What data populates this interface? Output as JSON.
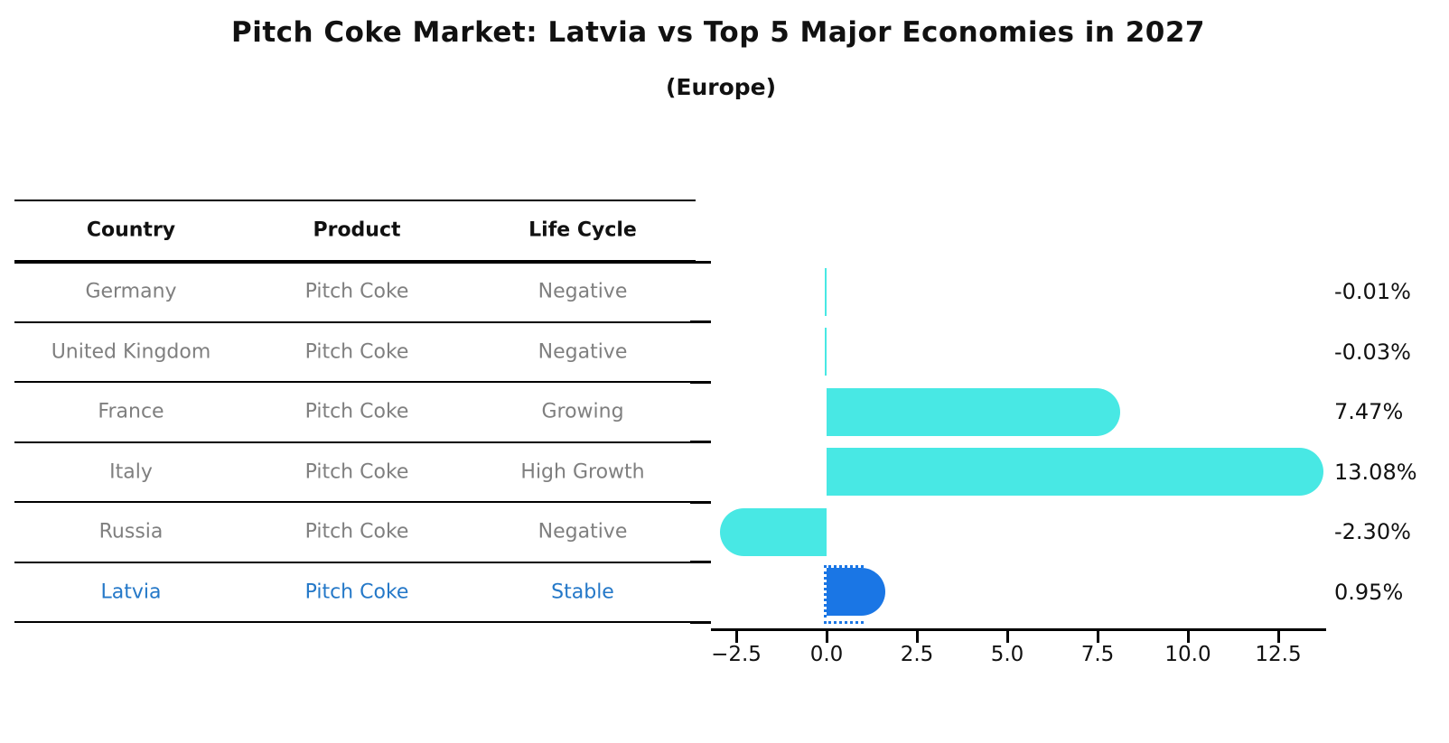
{
  "title": "Pitch Coke Market: Latvia vs Top 5 Major Economies in 2027",
  "subtitle": "(Europe)",
  "table": {
    "headers": [
      "Country",
      "Product",
      "Life Cycle"
    ],
    "rows": [
      {
        "country": "Germany",
        "product": "Pitch Coke",
        "life_cycle": "Negative",
        "highlight": false
      },
      {
        "country": "United Kingdom",
        "product": "Pitch Coke",
        "life_cycle": "Negative",
        "highlight": false
      },
      {
        "country": "France",
        "product": "Pitch Coke",
        "life_cycle": "Growing",
        "highlight": false
      },
      {
        "country": "Italy",
        "product": "Pitch Coke",
        "life_cycle": "High Growth",
        "highlight": false
      },
      {
        "country": "Russia",
        "product": "Pitch Coke",
        "life_cycle": "Negative",
        "highlight": false
      },
      {
        "country": "Latvia",
        "product": "Pitch Coke",
        "life_cycle": "Stable",
        "highlight": true
      }
    ]
  },
  "chart_data": {
    "type": "bar",
    "orientation": "horizontal",
    "title": "Pitch Coke Market: Latvia vs Top 5 Major Economies in 2027",
    "subtitle": "(Europe)",
    "categories": [
      "Germany",
      "United Kingdom",
      "France",
      "Italy",
      "Russia",
      "Latvia"
    ],
    "values": [
      -0.01,
      -0.03,
      7.47,
      13.08,
      -2.3,
      0.95
    ],
    "value_labels": [
      "-0.01%",
      "-0.03%",
      "7.47%",
      "13.08%",
      "-2.30%",
      "0.95%"
    ],
    "highlight_category": "Latvia",
    "x_ticks": [
      -2.5,
      0.0,
      2.5,
      5.0,
      7.5,
      10.0,
      12.5
    ],
    "x_tick_labels": [
      "−2.5",
      "0.0",
      "2.5",
      "5.0",
      "7.5",
      "10.0",
      "12.5"
    ],
    "xlim": [
      -3.2,
      13.85
    ],
    "grid": false,
    "legend": false
  },
  "colors": {
    "bar": "#48e8e4",
    "highlight_bar": "#1a76e5",
    "highlight_text": "#2478c8",
    "row_text": "#7f7f7f",
    "header_text": "#111111",
    "axis": "#000000"
  }
}
